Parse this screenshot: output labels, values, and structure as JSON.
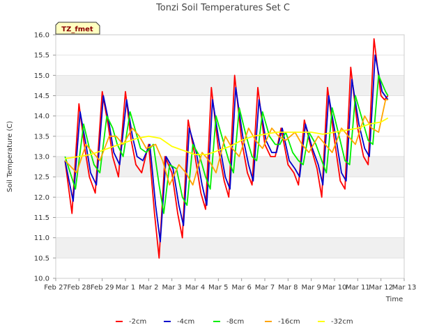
{
  "chart_data": {
    "type": "line",
    "title": "Tonzi Soil Temperatures Set C",
    "xlabel": "Time",
    "ylabel": "Soil Temperature (C)",
    "ylim": [
      10.0,
      16.0
    ],
    "xlim": [
      0,
      15
    ],
    "y_ticks": [
      "10.0",
      "10.5",
      "11.0",
      "11.5",
      "12.0",
      "12.5",
      "13.0",
      "13.5",
      "14.0",
      "14.5",
      "15.0",
      "15.5",
      "16.0"
    ],
    "x_ticks": [
      "Feb 27",
      "Feb 28",
      "Feb 29",
      "Mar 1",
      "Mar 2",
      "Mar 3",
      "Mar 4",
      "Mar 5",
      "Mar 6",
      "Mar 7",
      "Mar 8",
      "Mar 9",
      "Mar 10",
      "Mar 11",
      "Mar 12",
      "Mar 13"
    ],
    "grid": "horizontal bands",
    "legend_position": "bottom",
    "annotation": "TZ_fmet",
    "x_unit": "days since Feb 27",
    "series": [
      {
        "name": "-2cm",
        "color": "#ff0000",
        "x": [
          0.4,
          0.7,
          1.0,
          1.25,
          1.45,
          1.7,
          2.0,
          2.25,
          2.45,
          2.7,
          3.0,
          3.25,
          3.45,
          3.7,
          4.0,
          4.25,
          4.45,
          4.7,
          5.0,
          5.25,
          5.45,
          5.7,
          6.0,
          6.25,
          6.45,
          6.7,
          7.0,
          7.25,
          7.45,
          7.7,
          8.0,
          8.25,
          8.45,
          8.7,
          9.0,
          9.25,
          9.45,
          9.7,
          10.0,
          10.25,
          10.45,
          10.7,
          11.0,
          11.25,
          11.45,
          11.7,
          12.0,
          12.25,
          12.45,
          12.7,
          13.0,
          13.25,
          13.45,
          13.7,
          14.0,
          14.15,
          14.3
        ],
        "y": [
          12.9,
          11.6,
          14.3,
          13.2,
          12.5,
          12.1,
          14.6,
          13.8,
          13.0,
          12.5,
          14.6,
          13.4,
          12.8,
          12.6,
          13.3,
          11.6,
          10.5,
          13.0,
          12.6,
          11.6,
          11.0,
          13.9,
          13.0,
          12.1,
          11.7,
          14.7,
          13.2,
          12.4,
          12.0,
          15.0,
          13.4,
          12.6,
          12.3,
          14.7,
          13.3,
          13.0,
          13.0,
          13.7,
          12.8,
          12.6,
          12.3,
          13.9,
          13.2,
          12.7,
          12.0,
          14.7,
          13.4,
          12.4,
          12.2,
          15.2,
          13.7,
          13.0,
          12.8,
          15.9,
          14.5,
          14.4,
          14.5
        ]
      },
      {
        "name": "-4cm",
        "color": "#0000cc",
        "x": [
          0.4,
          0.75,
          1.05,
          1.3,
          1.5,
          1.75,
          2.05,
          2.3,
          2.5,
          2.75,
          3.05,
          3.3,
          3.5,
          3.75,
          4.05,
          4.3,
          4.5,
          4.75,
          5.05,
          5.3,
          5.5,
          5.75,
          6.05,
          6.3,
          6.5,
          6.75,
          7.05,
          7.3,
          7.5,
          7.75,
          8.05,
          8.3,
          8.5,
          8.75,
          9.05,
          9.3,
          9.5,
          9.75,
          10.05,
          10.3,
          10.5,
          10.75,
          11.05,
          11.3,
          11.5,
          11.75,
          12.05,
          12.3,
          12.5,
          12.75,
          13.05,
          13.3,
          13.5,
          13.75,
          14.05,
          14.3
        ],
        "y": [
          12.9,
          11.9,
          14.1,
          13.3,
          12.6,
          12.3,
          14.5,
          13.8,
          13.1,
          12.8,
          14.4,
          13.5,
          13.0,
          12.9,
          13.3,
          11.8,
          10.9,
          13.0,
          12.7,
          11.8,
          11.3,
          13.7,
          13.1,
          12.3,
          11.8,
          14.4,
          13.3,
          12.5,
          12.2,
          14.7,
          13.5,
          12.8,
          12.4,
          14.4,
          13.4,
          13.1,
          13.1,
          13.7,
          12.9,
          12.7,
          12.5,
          13.8,
          13.2,
          12.8,
          12.3,
          14.5,
          13.5,
          12.6,
          12.4,
          14.9,
          13.8,
          13.2,
          13.0,
          15.5,
          14.6,
          14.4
        ]
      },
      {
        "name": "-8cm",
        "color": "#00ee00",
        "x": [
          0.4,
          0.85,
          1.2,
          1.45,
          1.65,
          1.9,
          2.2,
          2.45,
          2.65,
          2.9,
          3.2,
          3.45,
          3.65,
          3.9,
          4.2,
          4.45,
          4.65,
          4.9,
          5.2,
          5.45,
          5.65,
          5.9,
          6.2,
          6.45,
          6.65,
          6.9,
          7.2,
          7.45,
          7.65,
          7.9,
          8.2,
          8.45,
          8.65,
          8.9,
          9.2,
          9.45,
          9.65,
          9.9,
          10.2,
          10.45,
          10.65,
          10.9,
          11.2,
          11.45,
          11.65,
          11.9,
          12.2,
          12.45,
          12.65,
          12.9,
          13.2,
          13.45,
          13.65,
          13.9,
          14.2,
          14.3
        ],
        "y": [
          13.0,
          12.2,
          13.8,
          13.2,
          12.8,
          12.6,
          14.0,
          13.7,
          13.3,
          13.0,
          14.1,
          13.6,
          13.2,
          13.1,
          13.3,
          12.3,
          11.6,
          12.8,
          12.7,
          12.0,
          11.8,
          13.3,
          13.0,
          12.5,
          12.2,
          14.0,
          13.4,
          12.9,
          12.6,
          14.2,
          13.5,
          13.0,
          12.9,
          14.1,
          13.5,
          13.3,
          13.3,
          13.6,
          13.1,
          12.9,
          12.8,
          13.6,
          13.3,
          12.9,
          12.6,
          14.2,
          13.5,
          12.9,
          12.8,
          14.5,
          13.9,
          13.4,
          13.3,
          15.0,
          14.6,
          14.5
        ]
      },
      {
        "name": "-16cm",
        "color": "#ffa500",
        "x": [
          0.4,
          0.9,
          1.3,
          1.6,
          1.9,
          2.3,
          2.6,
          2.9,
          3.3,
          3.6,
          3.9,
          4.3,
          4.6,
          4.9,
          5.3,
          5.6,
          5.9,
          6.3,
          6.6,
          6.9,
          7.3,
          7.6,
          7.9,
          8.3,
          8.6,
          8.9,
          9.3,
          9.6,
          9.9,
          10.3,
          10.6,
          10.9,
          11.3,
          11.6,
          11.9,
          12.3,
          12.6,
          12.9,
          13.3,
          13.6,
          13.9,
          14.2,
          14.3
        ],
        "y": [
          12.9,
          12.6,
          13.3,
          13.1,
          12.9,
          13.5,
          13.5,
          13.3,
          13.7,
          13.5,
          13.2,
          13.3,
          12.9,
          12.3,
          12.8,
          12.6,
          12.3,
          13.1,
          12.9,
          12.6,
          13.5,
          13.2,
          13.0,
          13.7,
          13.4,
          13.2,
          13.7,
          13.5,
          13.4,
          13.6,
          13.3,
          13.1,
          13.5,
          13.3,
          13.1,
          13.7,
          13.5,
          13.3,
          14.0,
          13.7,
          13.6,
          14.4,
          14.4
        ]
      },
      {
        "name": "-32cm",
        "color": "#ffff00",
        "x": [
          0.4,
          1.0,
          1.5,
          2.0,
          2.5,
          3.0,
          3.5,
          4.0,
          4.5,
          5.0,
          5.5,
          6.0,
          6.5,
          7.0,
          7.5,
          8.0,
          8.5,
          9.0,
          9.5,
          10.0,
          10.5,
          11.0,
          11.5,
          12.0,
          12.5,
          13.0,
          13.5,
          14.0,
          14.3
        ],
        "y": [
          12.95,
          13.0,
          13.05,
          13.15,
          13.25,
          13.35,
          13.45,
          13.5,
          13.45,
          13.25,
          13.15,
          13.05,
          13.05,
          13.15,
          13.25,
          13.4,
          13.5,
          13.55,
          13.6,
          13.6,
          13.6,
          13.6,
          13.55,
          13.6,
          13.65,
          13.7,
          13.8,
          13.85,
          13.95
        ]
      }
    ]
  }
}
